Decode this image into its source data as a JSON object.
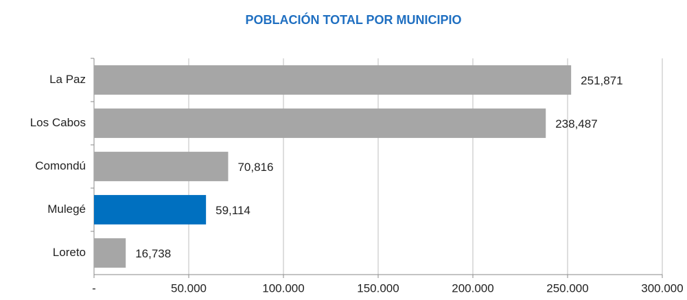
{
  "chart_data": {
    "type": "bar",
    "orientation": "horizontal",
    "title": "POBLACIÓN TOTAL POR MUNICIPIO",
    "categories": [
      "La Paz",
      "Los Cabos",
      "Comondú",
      "Mulegé",
      "Loreto"
    ],
    "values": [
      251871,
      238487,
      70816,
      59114,
      16738
    ],
    "value_labels": [
      "251,871",
      "238,487",
      "70,816",
      "59,114",
      "16,738"
    ],
    "colors": [
      "#a6a6a6",
      "#a6a6a6",
      "#a6a6a6",
      "#0070c0",
      "#a6a6a6"
    ],
    "xlim": [
      0,
      300000
    ],
    "xticks": [
      {
        "value": 0,
        "label": "-"
      },
      {
        "value": 50000,
        "label": "50.000"
      },
      {
        "value": 100000,
        "label": "100.000"
      },
      {
        "value": 150000,
        "label": "150.000"
      },
      {
        "value": 200000,
        "label": "200.000"
      },
      {
        "value": 250000,
        "label": "250.000"
      },
      {
        "value": 300000,
        "label": "300.000"
      }
    ],
    "grid": true
  }
}
